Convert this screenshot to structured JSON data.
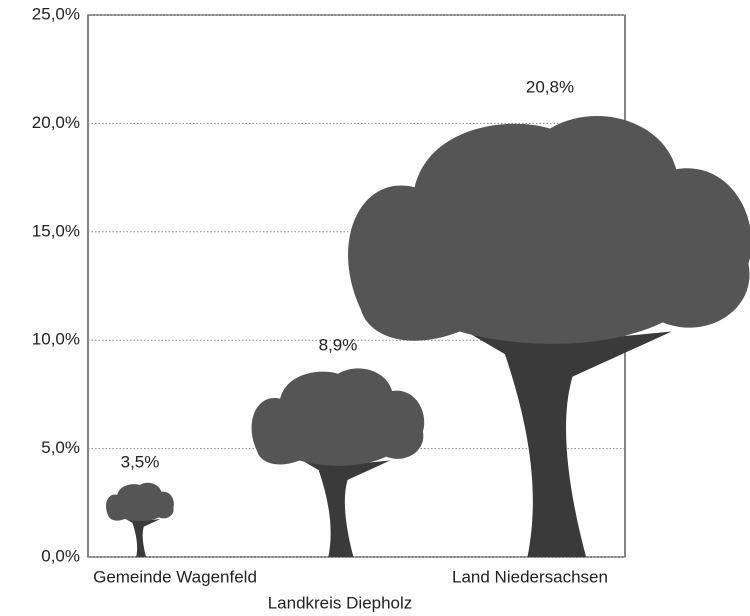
{
  "chart_data": {
    "type": "pictogram",
    "categories": [
      "Gemeinde Wagenfeld",
      "Landkreis Diepholz",
      "Land Niedersachsen"
    ],
    "values": [
      3.5,
      8.9,
      20.8
    ],
    "value_labels": [
      "3,5%",
      "8,9%",
      "20,8%"
    ],
    "color": "#555555",
    "ylim": [
      0,
      25
    ],
    "yticks": [
      {
        "value": 0,
        "label": "0,0%"
      },
      {
        "value": 5,
        "label": "5,0%"
      },
      {
        "value": 10,
        "label": "10,0%"
      },
      {
        "value": 15,
        "label": "15,0%"
      },
      {
        "value": 20,
        "label": "20,0%"
      },
      {
        "value": 25,
        "label": "25,0%"
      }
    ],
    "grid": true
  }
}
